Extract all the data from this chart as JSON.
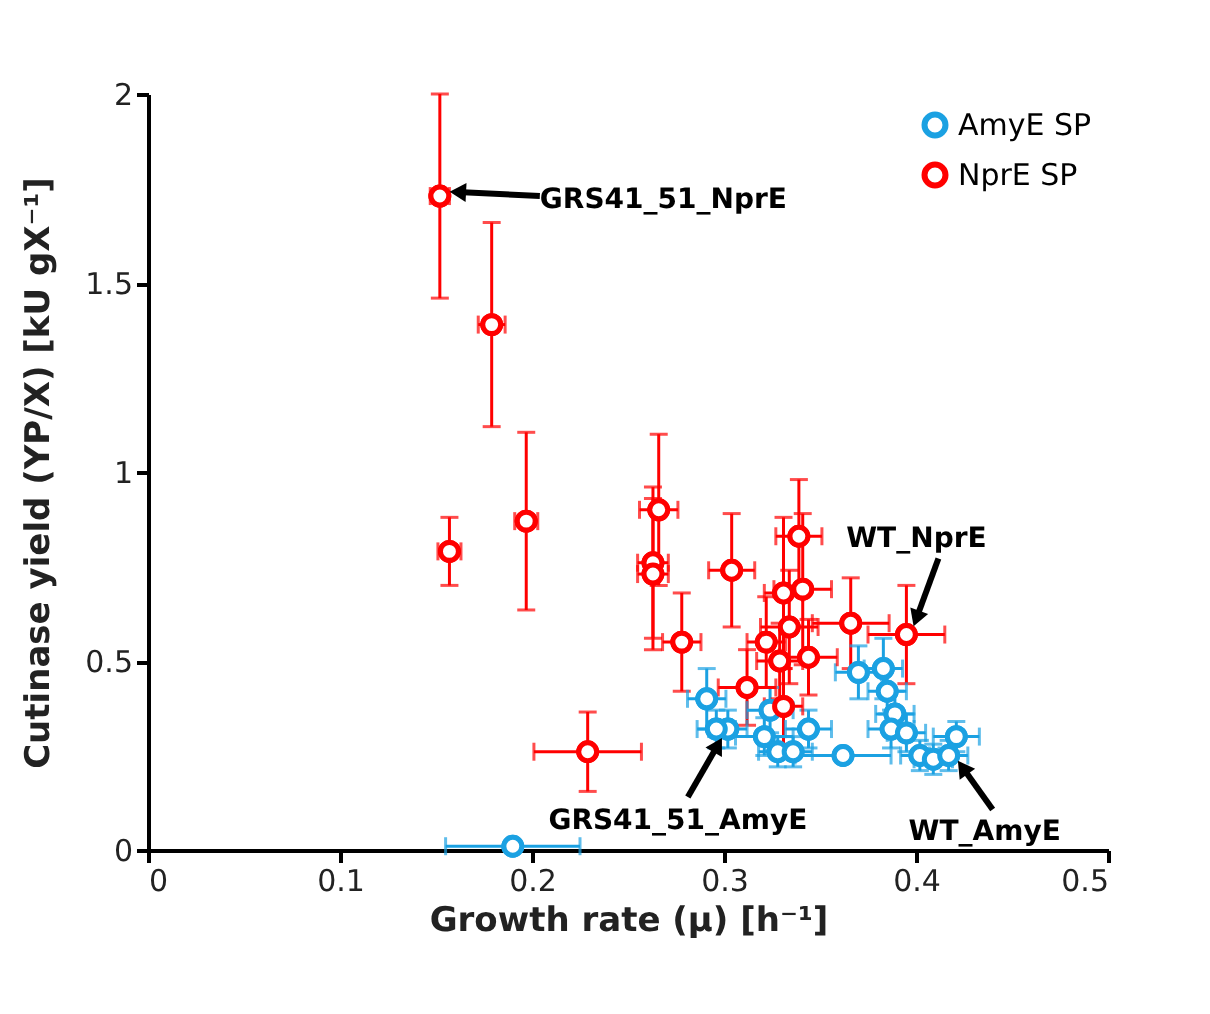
{
  "chart_data": {
    "type": "scatter",
    "xlabel": "Growth rate (μ)   [h⁻¹]",
    "ylabel": "Cutinase yield (YP/X)   [kU gX⁻¹]",
    "xlim": [
      0,
      0.5
    ],
    "ylim": [
      0,
      2
    ],
    "xticks": [
      0,
      0.1,
      0.2,
      0.3,
      0.4,
      0.5
    ],
    "yticks": [
      0,
      0.5,
      1,
      1.5,
      2
    ],
    "grid": false,
    "legend": "top right",
    "marker": "circle",
    "series": [
      {
        "name": "AmyE SP",
        "color": "#1ba1e2",
        "x": [
          0.19,
          0.291,
          0.302,
          0.296,
          0.321,
          0.324,
          0.328,
          0.336,
          0.344,
          0.362,
          0.37,
          0.383,
          0.385,
          0.389,
          0.387,
          0.395,
          0.402,
          0.409,
          0.417,
          0.421
        ],
        "values": [
          0.01,
          0.4,
          0.32,
          0.32,
          0.3,
          0.37,
          0.26,
          0.26,
          0.32,
          0.25,
          0.47,
          0.48,
          0.42,
          0.36,
          0.32,
          0.31,
          0.25,
          0.24,
          0.25,
          0.3
        ],
        "errors": [
          null,
          0.08,
          0.05,
          0.05,
          0.05,
          0.06,
          0.04,
          0.04,
          0.05,
          null,
          0.07,
          0.08,
          0.06,
          0.06,
          0.05,
          0.05,
          0.04,
          0.04,
          0.04,
          0.04
        ],
        "xerrors": [
          0.035,
          0.01,
          0.01,
          0.01,
          0.015,
          0.012,
          0.01,
          0.01,
          0.012,
          0.025,
          0.012,
          0.01,
          0.01,
          0.01,
          0.012,
          0.01,
          0.01,
          0.01,
          0.01,
          0.012
        ]
      },
      {
        "name": "NprE SP",
        "color": "#ff0000",
        "x": [
          0.152,
          0.179,
          0.197,
          0.157,
          0.229,
          0.266,
          0.263,
          0.263,
          0.304,
          0.278,
          0.339,
          0.331,
          0.341,
          0.334,
          0.322,
          0.329,
          0.344,
          0.312,
          0.331,
          0.366,
          0.395
        ],
        "values": [
          1.73,
          1.39,
          0.87,
          0.79,
          0.26,
          0.9,
          0.76,
          0.73,
          0.74,
          0.55,
          0.83,
          0.68,
          0.69,
          0.59,
          0.55,
          0.5,
          0.51,
          0.43,
          0.38,
          0.6,
          0.57
        ],
        "errors": [
          0.27,
          0.27,
          0.235,
          0.09,
          0.105,
          0.2,
          0.2,
          0.2,
          0.15,
          0.13,
          0.15,
          0.2,
          0.2,
          0.15,
          0.12,
          0.1,
          0.1,
          0.1,
          0.1,
          0.12,
          0.13
        ],
        "xerrors": [
          0.005,
          0.007,
          0.006,
          0.006,
          0.028,
          0.01,
          0.008,
          0.008,
          0.012,
          0.01,
          0.012,
          0.01,
          0.015,
          0.015,
          0.01,
          0.012,
          0.015,
          0.015,
          0.01,
          0.02,
          0.02
        ]
      }
    ],
    "annotations": [
      {
        "text": "GRS41_51_NprE",
        "x": 0.152,
        "y": 1.73
      },
      {
        "text": "GRS41_51_AmyE",
        "x": 0.302,
        "y": 0.32
      },
      {
        "text": "WT_NprE",
        "x": 0.395,
        "y": 0.57
      },
      {
        "text": "WT_AmyE",
        "x": 0.417,
        "y": 0.25
      }
    ]
  }
}
